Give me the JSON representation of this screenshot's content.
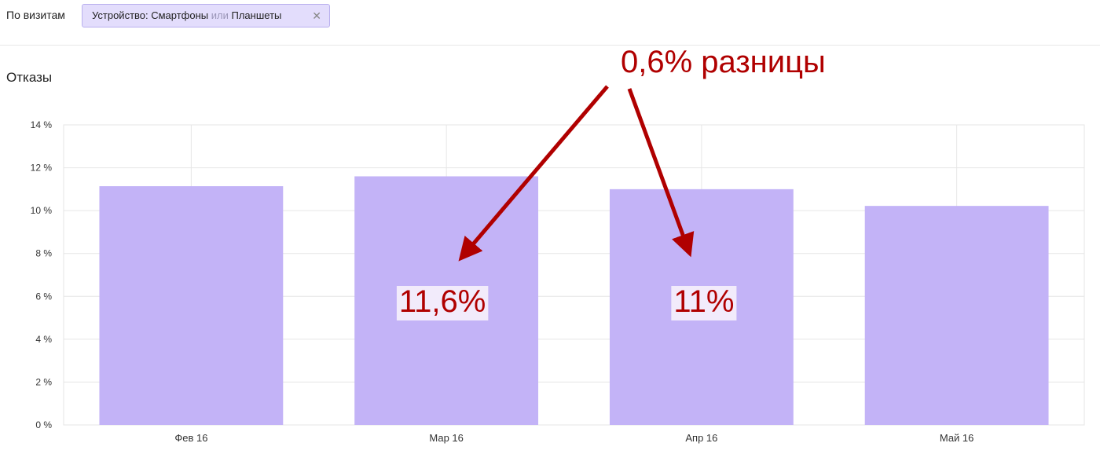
{
  "header": {
    "segment_label": "По визитам",
    "filter": {
      "field": "Устройство: Смартфоны",
      "operator": "или",
      "value": "Планшеты"
    }
  },
  "chart_data": {
    "type": "bar",
    "title": "Отказы",
    "annotation": "0,6% разницы",
    "categories": [
      "Фев 16",
      "Мар 16",
      "Апр 16",
      "Май 16"
    ],
    "values": [
      11.14,
      11.6,
      11,
      10.22
    ],
    "value_labels": [
      null,
      "11,6%",
      "11%",
      null
    ],
    "color": "#c3b3f7",
    "ylim": [
      0,
      14
    ],
    "yticks": [
      {
        "value": 0,
        "label": "0 %"
      },
      {
        "value": 2,
        "label": "2 %"
      },
      {
        "value": 4,
        "label": "4 %"
      },
      {
        "value": 6,
        "label": "6 %"
      },
      {
        "value": 8,
        "label": "8 %"
      },
      {
        "value": 10,
        "label": "10 %"
      },
      {
        "value": 12,
        "label": "12 %"
      },
      {
        "value": 14,
        "label": "14 %"
      }
    ],
    "grid": true
  }
}
